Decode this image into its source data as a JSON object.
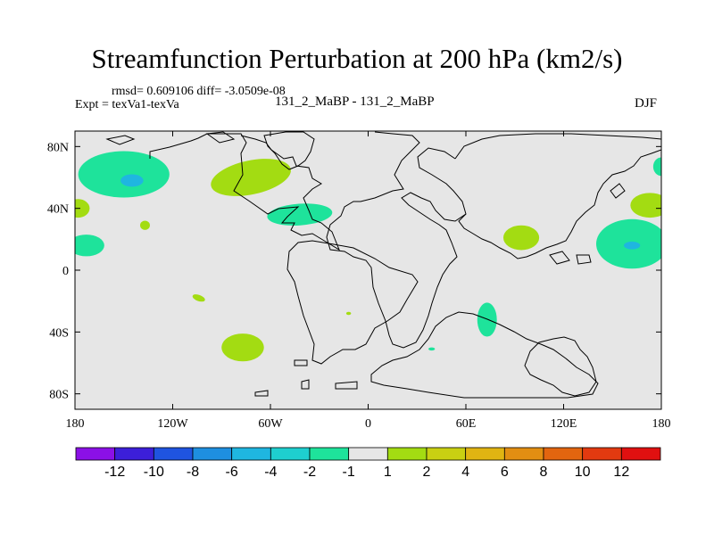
{
  "chart_data": {
    "type": "heatmap",
    "title": "Streamfunction Perturbation at 200 hPa (km2/s)",
    "rmsd_text": "rmsd= 0.609106 diff= -3.0509e-08",
    "expt_text": "Expt = texVa1-texVa",
    "case_text": "131_2_MaBP - 131_2_MaBP",
    "season": "DJF",
    "x_range": [
      -180,
      180
    ],
    "y_range": [
      -90,
      90
    ],
    "x_ticks": [
      {
        "value": -180,
        "label": "180"
      },
      {
        "value": -120,
        "label": "120W"
      },
      {
        "value": -60,
        "label": "60W"
      },
      {
        "value": 0,
        "label": "0"
      },
      {
        "value": 60,
        "label": "60E"
      },
      {
        "value": 120,
        "label": "120E"
      },
      {
        "value": 180,
        "label": "180"
      }
    ],
    "y_ticks": [
      {
        "value": 80,
        "label": "80N"
      },
      {
        "value": 40,
        "label": "40N"
      },
      {
        "value": 0,
        "label": "0"
      },
      {
        "value": -40,
        "label": "40S"
      },
      {
        "value": -80,
        "label": "80S"
      }
    ],
    "colorbar": {
      "colors": [
        "#8b10e6",
        "#3c1fd9",
        "#1f54e0",
        "#1e8fe0",
        "#1fb6e0",
        "#1ecfcf",
        "#1ee39b",
        "#e6e6e6",
        "#a3dc12",
        "#c9d012",
        "#e0b412",
        "#e28e12",
        "#e2650f",
        "#e23a10",
        "#e01010"
      ],
      "labels": [
        "-12",
        "-10",
        "-8",
        "-6",
        "-4",
        "-2",
        "-1",
        "1",
        "2",
        "4",
        "6",
        "8",
        "10",
        "12"
      ]
    },
    "anomalies": [
      {
        "name": "n-pacific-negative",
        "lon": -150,
        "lat": 62,
        "rlon": 28,
        "rlat": 15,
        "level": -1
      },
      {
        "name": "n-pacific-negative-core",
        "lon": -145,
        "lat": 58,
        "rlon": 7,
        "rlat": 4,
        "level": -3
      },
      {
        "name": "n-america-positive",
        "lon": -72,
        "lat": 60,
        "rlon": 25,
        "rlat": 11,
        "level": 1,
        "angle": -12
      },
      {
        "name": "n-atlantic-negative",
        "lon": -42,
        "lat": 36,
        "rlon": 20,
        "rlat": 7,
        "level": -1,
        "angle": -4
      },
      {
        "name": "w-pacific-positive-small",
        "lon": -178,
        "lat": 40,
        "rlon": 7,
        "rlat": 6,
        "level": 1
      },
      {
        "name": "subtrop-pacific-positive",
        "lon": -137,
        "lat": 29,
        "rlon": 3,
        "rlat": 3,
        "level": 1
      },
      {
        "name": "w-pacific-negative-small",
        "lon": -173,
        "lat": 16,
        "rlon": 11,
        "rlat": 7,
        "level": -1
      },
      {
        "name": "s-pacific-positive-small",
        "lon": -104,
        "lat": -18,
        "rlon": 4,
        "rlat": 2,
        "level": 1,
        "angle": 20
      },
      {
        "name": "s-atlantic-dot",
        "lon": -12,
        "lat": -28,
        "rlon": 1.5,
        "rlat": 1,
        "level": 1
      },
      {
        "name": "s-pacific-positive",
        "lon": -77,
        "lat": -50,
        "rlon": 13,
        "rlat": 9,
        "level": 1
      },
      {
        "name": "s-indian-negative",
        "lon": 73,
        "lat": -32,
        "rlon": 6,
        "rlat": 11,
        "level": -1
      },
      {
        "name": "s-indian-dot",
        "lon": 39,
        "lat": -51,
        "rlon": 2,
        "rlat": 1,
        "level": -1
      },
      {
        "name": "asia-positive",
        "lon": 94,
        "lat": 21,
        "rlon": 11,
        "rlat": 8,
        "level": 1
      },
      {
        "name": "e-asia-negative",
        "lon": 162,
        "lat": 17,
        "rlon": 22,
        "rlat": 16,
        "level": -1
      },
      {
        "name": "e-asia-negative-core",
        "lon": 162,
        "lat": 16,
        "rlon": 5,
        "rlat": 2.5,
        "level": -3
      },
      {
        "name": "ne-pacific-positive",
        "lon": 173,
        "lat": 42,
        "rlon": 12,
        "rlat": 8,
        "level": 1
      },
      {
        "name": "far-east-negative",
        "lon": 180,
        "lat": 67,
        "rlon": 5,
        "rlat": 6,
        "level": -1
      }
    ]
  }
}
